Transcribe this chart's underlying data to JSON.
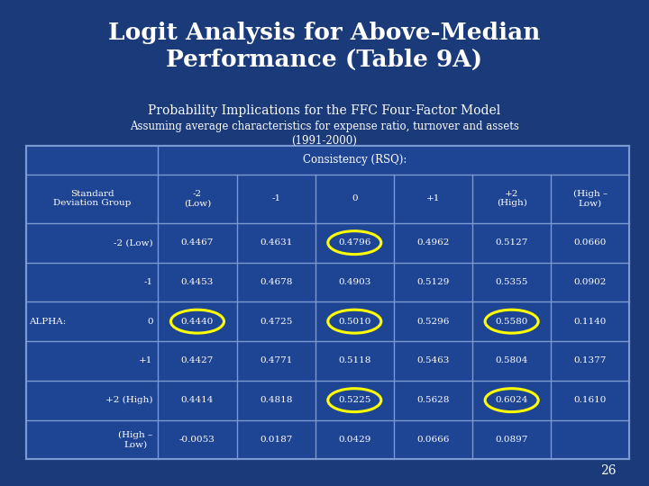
{
  "title_line1": "Logit Analysis for Above-Median",
  "title_line2": "Performance (Table 9A)",
  "subtitle1": "Probability Implications for the FFC Four-Factor Model",
  "subtitle2": "Assuming average characteristics for expense ratio, turnover and assets",
  "subtitle3": "(1991-2000)",
  "bg_color": "#1a3a7a",
  "table_bg": "#1e4494",
  "table_border": "#7a9ad0",
  "text_color": "#ffffff",
  "page_number": "26",
  "consistency_header": "Consistency (RSQ):",
  "alpha_label": "ALPHA:",
  "row_labels": [
    "-2 (Low)",
    "-1",
    "0",
    "+1",
    "+2 (High)",
    "(High –\nLow)"
  ],
  "col_header_labels": [
    "-2\n(Low)",
    "-1",
    "0",
    "+1",
    "+2\n(High)",
    "(High –\nLow)"
  ],
  "data": [
    [
      "0.4467",
      "0.4631",
      "0.4796",
      "0.4962",
      "0.5127",
      "0.0660"
    ],
    [
      "0.4453",
      "0.4678",
      "0.4903",
      "0.5129",
      "0.5355",
      "0.0902"
    ],
    [
      "0.4440",
      "0.4725",
      "0.5010",
      "0.5296",
      "0.5580",
      "0.1140"
    ],
    [
      "0.4427",
      "0.4771",
      "0.5118",
      "0.5463",
      "0.5804",
      "0.1377"
    ],
    [
      "0.4414",
      "0.4818",
      "0.5225",
      "0.5628",
      "0.6024",
      "0.1610"
    ],
    [
      "-0.0053",
      "0.0187",
      "0.0429",
      "0.0666",
      "0.0897",
      ""
    ]
  ],
  "circled_cells": [
    [
      0,
      2
    ],
    [
      2,
      0
    ],
    [
      2,
      2
    ],
    [
      2,
      4
    ],
    [
      4,
      2
    ],
    [
      4,
      4
    ]
  ],
  "alpha_row_index": 2
}
